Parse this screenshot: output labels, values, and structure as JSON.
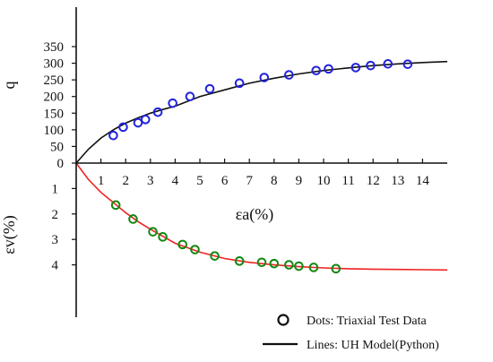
{
  "chart_data": [
    {
      "type": "scatter",
      "panel": "top",
      "ylabel": "q",
      "xlim": [
        0,
        15
      ],
      "ylim": [
        0,
        350
      ],
      "x_ticks": [
        0,
        1,
        2,
        3,
        4,
        5,
        6,
        7,
        8,
        9,
        10,
        11,
        12,
        13,
        14
      ],
      "y_ticks": [
        0,
        50,
        100,
        150,
        200,
        250,
        300,
        350
      ],
      "grid": false,
      "series": [
        {
          "name": "Dots: Triaxial Test Data",
          "kind": "markers",
          "color": "#2222dd",
          "x": [
            1.5,
            1.9,
            2.5,
            2.8,
            3.3,
            3.9,
            4.6,
            5.4,
            6.6,
            7.6,
            8.6,
            9.7,
            10.2,
            11.3,
            11.9,
            12.6,
            13.4
          ],
          "y": [
            83,
            108,
            121,
            131,
            153,
            180,
            200,
            223,
            240,
            257,
            265,
            278,
            283,
            287,
            293,
            298,
            297
          ]
        },
        {
          "name": "Lines: UH Model(Python)",
          "kind": "line",
          "color": "#111111",
          "x": [
            0,
            0.5,
            1,
            1.5,
            2,
            2.5,
            3,
            3.5,
            4,
            5,
            6,
            7,
            8,
            9,
            10,
            11,
            12,
            13,
            14,
            15
          ],
          "y": [
            0,
            42,
            75,
            100,
            120,
            136,
            150,
            161,
            171,
            200,
            220,
            240,
            255,
            268,
            278,
            286,
            293,
            298,
            302,
            305
          ]
        }
      ]
    },
    {
      "type": "scatter",
      "panel": "bottom",
      "xlabel": "εa(%)",
      "ylabel": "εv(%)",
      "xlim": [
        0,
        15
      ],
      "ylim": [
        0,
        6
      ],
      "y_inverted": true,
      "y_ticks": [
        0,
        1,
        2,
        3,
        4
      ],
      "grid": false,
      "series": [
        {
          "name": "Dots: Triaxial Test Data",
          "kind": "markers",
          "color": "#118811",
          "x": [
            1.6,
            2.3,
            3.1,
            3.5,
            4.3,
            4.8,
            5.6,
            6.6,
            7.5,
            8.0,
            8.6,
            9.0,
            9.6,
            10.5
          ],
          "y": [
            1.65,
            2.2,
            2.7,
            2.9,
            3.2,
            3.4,
            3.65,
            3.85,
            3.9,
            3.95,
            4.0,
            4.05,
            4.1,
            4.15
          ]
        },
        {
          "name": "Lines: UH Model(Python)",
          "kind": "line",
          "color": "#ee2222",
          "x": [
            0,
            0.5,
            1,
            1.5,
            2,
            2.5,
            3,
            4,
            5,
            6,
            7,
            8,
            9,
            10,
            11,
            12,
            13,
            14,
            15
          ],
          "y": [
            0,
            0.65,
            1.15,
            1.55,
            1.95,
            2.3,
            2.6,
            3.15,
            3.5,
            3.75,
            3.9,
            4.0,
            4.07,
            4.12,
            4.15,
            4.17,
            4.18,
            4.19,
            4.2
          ]
        }
      ]
    }
  ],
  "legend": {
    "position": "bottom-right",
    "items": [
      {
        "label": "Dots: Triaxial Test Data",
        "symbol": "circle"
      },
      {
        "label": "Lines: UH Model(Python)",
        "symbol": "line"
      }
    ]
  }
}
